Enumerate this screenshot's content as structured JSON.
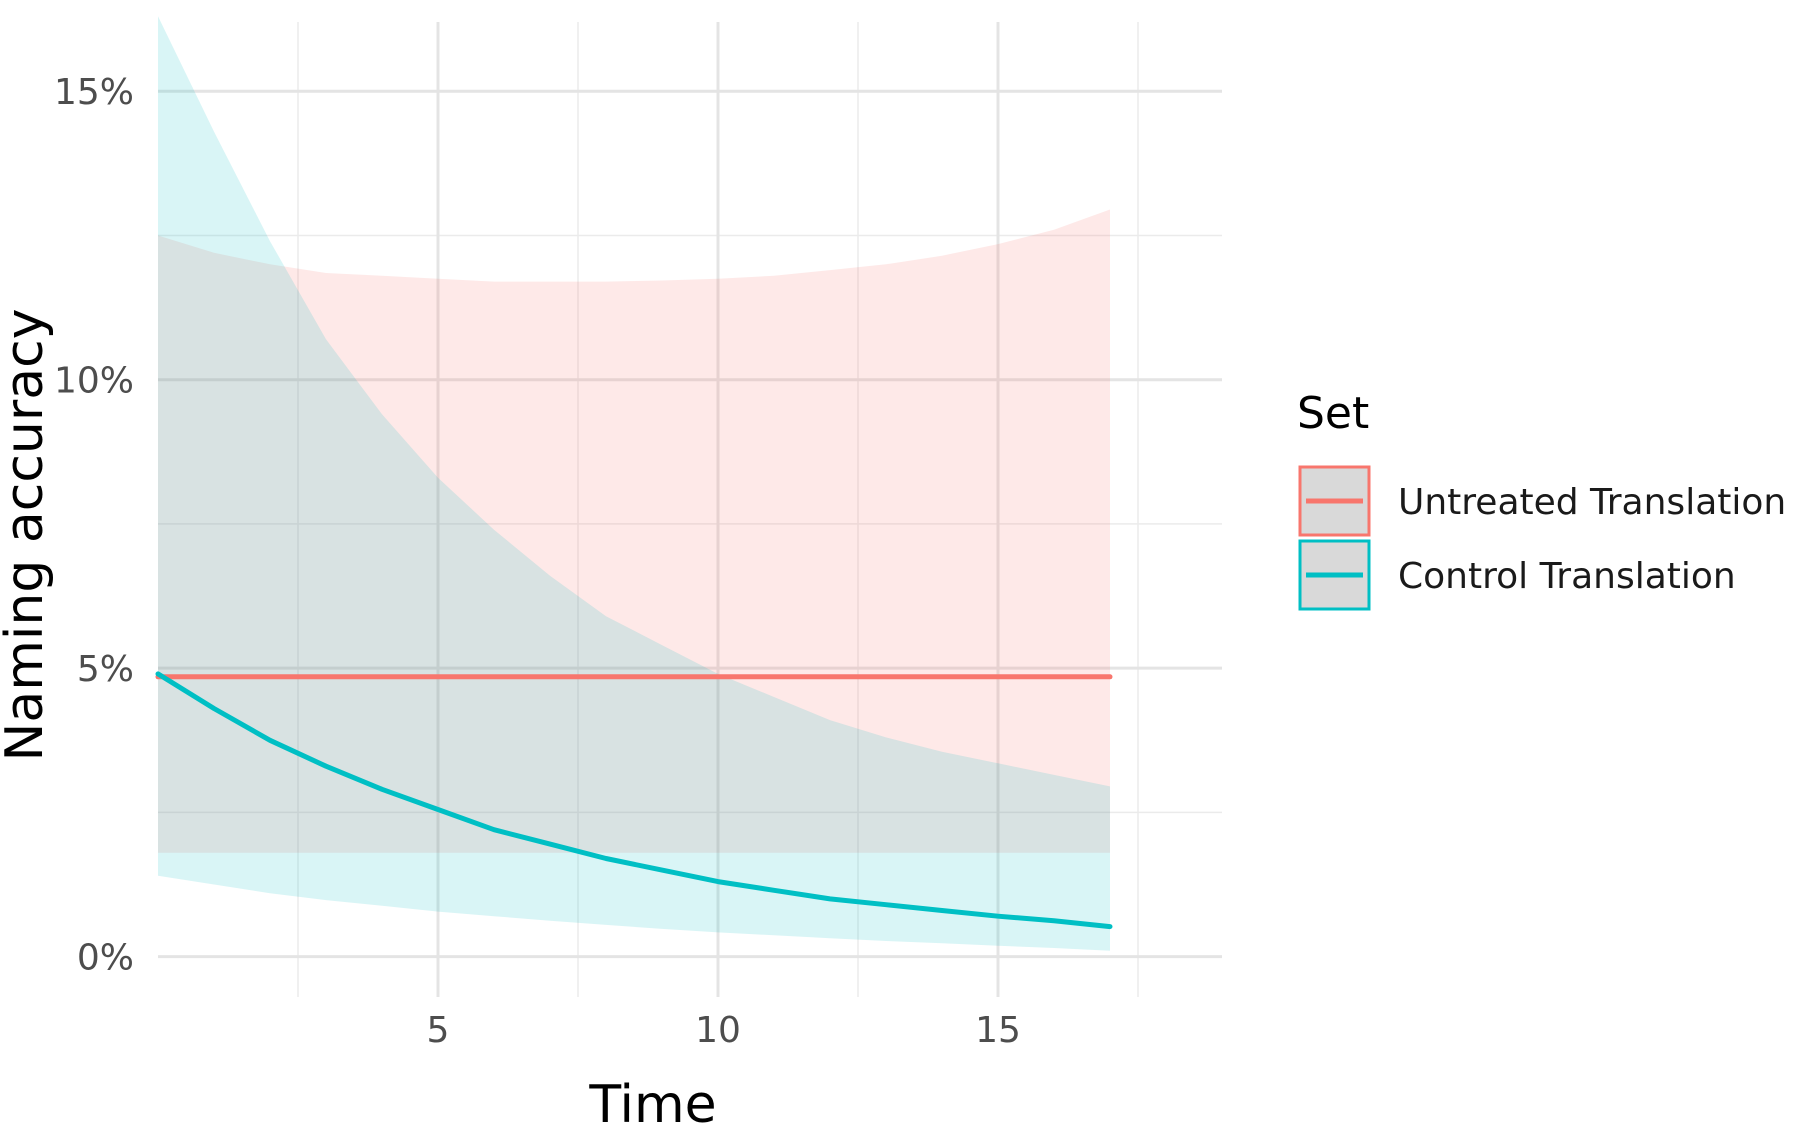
{
  "chart_data": {
    "type": "line",
    "xlabel": "Time",
    "ylabel": "Naming accuracy",
    "xlim": [
      0,
      19
    ],
    "ylim": [
      -0.7,
      16.2
    ],
    "x_ticks": [
      {
        "value": 5,
        "label": "5"
      },
      {
        "value": 10,
        "label": "10"
      },
      {
        "value": 15,
        "label": "15"
      }
    ],
    "y_ticks": [
      {
        "value": 0,
        "label": "0%"
      },
      {
        "value": 5,
        "label": "5%"
      },
      {
        "value": 10,
        "label": "10%"
      },
      {
        "value": 15,
        "label": "15%"
      }
    ],
    "x_minor_grid": [
      2.5,
      7.5,
      12.5,
      17.5
    ],
    "y_minor_grid": [
      2.5,
      7.5,
      12.5
    ],
    "grid": true,
    "legend": {
      "title": "Set",
      "position": "right",
      "entries": [
        "Untreated Translation",
        "Control Translation"
      ]
    },
    "series": [
      {
        "name": "Untreated Translation",
        "color": "#f8766d",
        "x": [
          0,
          1,
          2,
          3,
          4,
          5,
          6,
          7,
          8,
          9,
          10,
          11,
          12,
          13,
          14,
          15,
          16,
          17
        ],
        "y": [
          4.85,
          4.85,
          4.85,
          4.85,
          4.85,
          4.85,
          4.85,
          4.85,
          4.85,
          4.85,
          4.85,
          4.85,
          4.85,
          4.85,
          4.85,
          4.85,
          4.85,
          4.85
        ],
        "lower": [
          1.8,
          1.8,
          1.8,
          1.8,
          1.8,
          1.8,
          1.8,
          1.8,
          1.8,
          1.8,
          1.8,
          1.8,
          1.8,
          1.8,
          1.8,
          1.8,
          1.8,
          1.8
        ],
        "upper": [
          12.5,
          12.2,
          12.0,
          11.85,
          11.8,
          11.75,
          11.7,
          11.7,
          11.7,
          11.72,
          11.75,
          11.8,
          11.9,
          12.0,
          12.15,
          12.35,
          12.6,
          12.95
        ]
      },
      {
        "name": "Control Translation",
        "color": "#00bfc4",
        "x": [
          0,
          1,
          2,
          3,
          4,
          5,
          6,
          7,
          8,
          9,
          10,
          11,
          12,
          13,
          14,
          15,
          16,
          17
        ],
        "y": [
          4.9,
          4.3,
          3.75,
          3.3,
          2.9,
          2.55,
          2.2,
          1.95,
          1.7,
          1.5,
          1.3,
          1.15,
          1.0,
          0.9,
          0.8,
          0.7,
          0.62,
          0.52
        ],
        "lower": [
          1.4,
          1.25,
          1.1,
          0.98,
          0.88,
          0.78,
          0.7,
          0.62,
          0.55,
          0.48,
          0.42,
          0.37,
          0.32,
          0.27,
          0.23,
          0.19,
          0.15,
          0.1
        ],
        "upper": [
          16.3,
          14.3,
          12.4,
          10.7,
          9.4,
          8.3,
          7.4,
          6.6,
          5.9,
          5.4,
          4.9,
          4.5,
          4.1,
          3.8,
          3.55,
          3.35,
          3.15,
          2.95
        ]
      }
    ]
  }
}
